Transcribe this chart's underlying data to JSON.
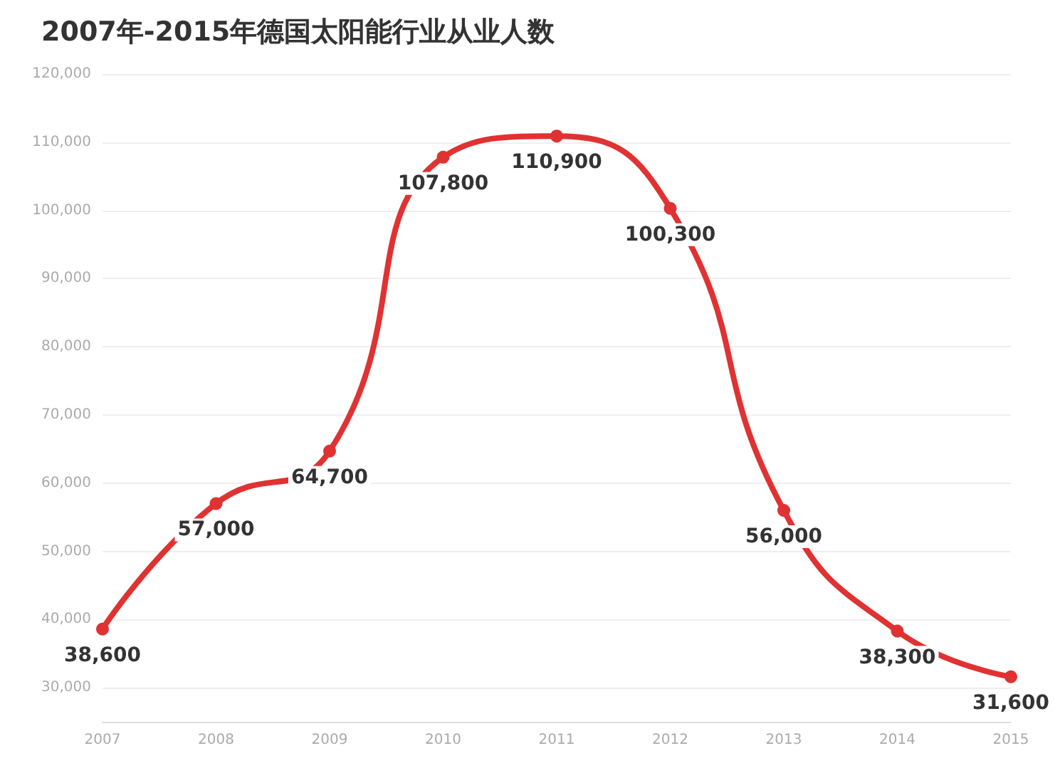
{
  "chart_data": {
    "type": "line",
    "title": "2007年-2015年德国太阳能行业从业人数",
    "x": [
      2007,
      2008,
      2009,
      2010,
      2011,
      2012,
      2013,
      2014,
      2015
    ],
    "series": [
      {
        "color": "#e03232",
        "values": [
          38600,
          57000,
          64700,
          107800,
          110900,
          100300,
          56000,
          38300,
          31600
        ]
      }
    ],
    "value_labels": [
      "38,600",
      "57,000",
      "64,700",
      "107,800",
      "110,900",
      "100,300",
      "56,000",
      "38,300",
      "31,600"
    ],
    "xlim": [
      2007,
      2015
    ],
    "xticks": [
      2007,
      2008,
      2009,
      2010,
      2011,
      2012,
      2013,
      2014,
      2015
    ],
    "ylim": [
      25000,
      120000
    ],
    "yticks": [
      {
        "value": 30000,
        "label": "30,000"
      },
      {
        "value": 40000,
        "label": "40,000"
      },
      {
        "value": 50000,
        "label": "50,000"
      },
      {
        "value": 60000,
        "label": "60,000"
      },
      {
        "value": 70000,
        "label": "70,000"
      },
      {
        "value": 80000,
        "label": "80,000"
      },
      {
        "value": 90000,
        "label": "90,000"
      },
      {
        "value": 100000,
        "label": "100,000"
      },
      {
        "value": 110000,
        "label": "110,000"
      },
      {
        "value": 120000,
        "label": "120,000"
      }
    ],
    "grid": "y",
    "marker": "circle",
    "line_style": "solid"
  }
}
